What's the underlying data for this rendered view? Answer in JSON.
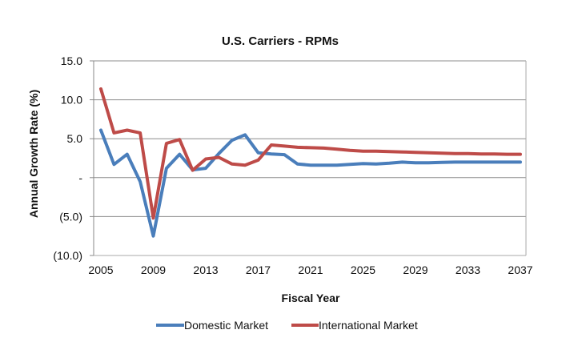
{
  "chart_data": {
    "type": "line",
    "title": "U.S. Carriers - RPMs",
    "xlabel": "Fiscal Year",
    "ylabel": "Annual Growth Rate (%)",
    "xlim": [
      2005,
      2037
    ],
    "ylim": [
      -10,
      15
    ],
    "grid": true,
    "legend_position": "bottom",
    "x_ticks": [
      2005,
      2009,
      2013,
      2017,
      2021,
      2025,
      2029,
      2033,
      2037
    ],
    "x_tick_labels": [
      "2005",
      "2009",
      "2013",
      "2017",
      "2021",
      "2025",
      "2029",
      "2033",
      "2037"
    ],
    "y_ticks": [
      15,
      10,
      5,
      0,
      -5,
      -10
    ],
    "y_tick_labels": [
      "15.0",
      "10.0",
      "5.0",
      "-",
      "(5.0)",
      "(10.0)"
    ],
    "x": [
      2005,
      2006,
      2007,
      2008,
      2009,
      2010,
      2011,
      2012,
      2013,
      2014,
      2015,
      2016,
      2017,
      2018,
      2019,
      2020,
      2021,
      2022,
      2023,
      2024,
      2025,
      2026,
      2027,
      2028,
      2029,
      2030,
      2031,
      2032,
      2033,
      2034,
      2035,
      2036,
      2037
    ],
    "series": [
      {
        "name": "Domestic Market",
        "color": "#4a7ebb",
        "values": [
          6.1,
          1.7,
          3.0,
          -0.5,
          -7.5,
          1.2,
          3.0,
          1.0,
          1.2,
          3.1,
          4.8,
          5.5,
          3.2,
          3.05,
          2.95,
          1.75,
          1.6,
          1.6,
          1.6,
          1.7,
          1.8,
          1.75,
          1.85,
          2.0,
          1.9,
          1.9,
          1.95,
          2.0,
          2.0,
          2.0,
          2.0,
          2.0,
          2.0
        ]
      },
      {
        "name": "International Market",
        "color": "#be4b48",
        "values": [
          11.4,
          5.75,
          6.1,
          5.75,
          -5.2,
          4.4,
          4.9,
          0.95,
          2.4,
          2.6,
          1.75,
          1.6,
          2.25,
          4.2,
          4.05,
          3.9,
          3.85,
          3.8,
          3.65,
          3.5,
          3.4,
          3.4,
          3.35,
          3.3,
          3.25,
          3.2,
          3.15,
          3.1,
          3.1,
          3.05,
          3.05,
          3.0,
          3.0
        ]
      }
    ]
  }
}
